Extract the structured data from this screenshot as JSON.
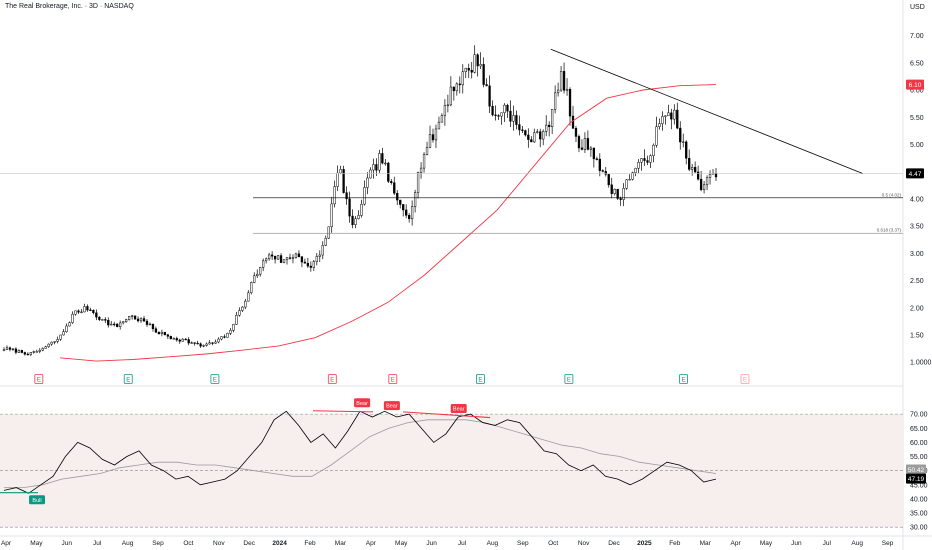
{
  "header": {
    "title": "The Real Brokerage, Inc. · 3D · NASDAQ",
    "currency": "USD"
  },
  "colors": {
    "up": "#ffffff",
    "down": "#000000",
    "candle_outline": "#000000",
    "ma_line": "#f23645",
    "trendline": "#000000",
    "rsi_line": "#000000",
    "rsi_ma": "#9b9b9b",
    "rsi_band": "#f7eeee",
    "bear_label": "#f23645",
    "bull_label": "#089981",
    "last_price_bg": "#000000",
    "ma_price_bg": "#f23645",
    "earnings_up": "#089981",
    "earnings_down": "#f23645"
  },
  "chart_data": [
    {
      "type": "candlestick",
      "name": "price",
      "x_labels": [
        "Apr",
        "May",
        "Jun",
        "Jul",
        "Aug",
        "Sep",
        "Oct",
        "Nov",
        "Dec",
        "2024",
        "Feb",
        "Mar",
        "Apr",
        "May",
        "Jun",
        "Jul",
        "Aug",
        "Sep",
        "Oct",
        "Nov",
        "Dec",
        "2025",
        "Feb",
        "Mar",
        "Apr",
        "May",
        "Jun",
        "Jul",
        "Aug",
        "Sep"
      ],
      "y_ticks": [
        "7.00",
        "6.50",
        "6.00",
        "5.50",
        "5.00",
        "4.50",
        "4.00",
        "3.50",
        "3.00",
        "2.50",
        "2.00",
        "1.50",
        "1.0000"
      ],
      "ylim": [
        0.82,
        7.25
      ],
      "close_path": [
        1.25,
        1.2,
        1.15,
        1.28,
        1.45,
        1.9,
        2.0,
        1.78,
        1.65,
        1.85,
        1.75,
        1.55,
        1.45,
        1.4,
        1.3,
        1.35,
        1.5,
        2.0,
        2.6,
        3.0,
        2.85,
        3.0,
        2.7,
        3.2,
        4.6,
        3.4,
        4.3,
        4.8,
        4.0,
        3.7,
        4.8,
        5.3,
        6.0,
        6.3,
        6.6,
        5.5,
        5.7,
        5.2,
        5.1,
        5.4,
        6.3,
        5.0,
        5.0,
        4.4,
        4.0,
        4.5,
        4.7,
        5.4,
        5.6,
        4.6,
        4.25,
        4.45
      ],
      "last_price": 4.47,
      "ma_label": "6.10",
      "ma_path": [
        1.08,
        1.02,
        1.05,
        1.1,
        1.15,
        1.22,
        1.3,
        1.45,
        1.75,
        2.1,
        2.6,
        3.2,
        3.8,
        4.6,
        5.4,
        5.85,
        6.0,
        6.08,
        6.1
      ],
      "fib_levels": [
        {
          "label": "0.5 (4.02)",
          "value": 4.02
        },
        {
          "label": "0.618 (3.37)",
          "value": 3.37
        }
      ],
      "trendline": {
        "from": [
          0.61,
          6.75
        ],
        "to": [
          0.955,
          4.47
        ]
      },
      "earnings": [
        {
          "pos": 0.043,
          "label": "E",
          "kind": "down"
        },
        {
          "pos": 0.142,
          "label": "E",
          "kind": "up"
        },
        {
          "pos": 0.238,
          "label": "E",
          "kind": "up"
        },
        {
          "pos": 0.368,
          "label": "E",
          "kind": "down"
        },
        {
          "pos": 0.435,
          "label": "E",
          "kind": "down"
        },
        {
          "pos": 0.532,
          "label": "E",
          "kind": "up"
        },
        {
          "pos": 0.63,
          "label": "E",
          "kind": "up"
        },
        {
          "pos": 0.757,
          "label": "E",
          "kind": "up"
        },
        {
          "pos": 0.825,
          "label": "E",
          "kind": "pending"
        }
      ]
    },
    {
      "type": "line",
      "name": "rsi",
      "y_ticks": [
        "70.00",
        "65.00",
        "60.00",
        "55.00",
        "50.00",
        "45.00",
        "40.00",
        "35.00",
        "30.00"
      ],
      "ylim": [
        29,
        75
      ],
      "bands": [
        30,
        70
      ],
      "midline": 50,
      "rsi_value": "47.19",
      "rsi_ma_value": "50.42",
      "rsi_path": [
        43,
        44,
        42,
        45,
        48,
        55,
        60,
        58,
        54,
        52,
        55,
        57,
        52,
        50,
        47,
        48,
        45,
        46,
        47,
        50,
        55,
        60,
        68,
        71,
        66,
        60,
        63,
        58,
        64,
        71,
        69,
        71,
        69,
        70,
        65,
        60,
        63,
        69,
        70,
        67,
        66,
        68,
        67,
        62,
        57,
        56,
        52,
        50,
        52,
        48,
        47,
        45,
        47,
        50,
        53,
        52,
        50,
        46,
        47
      ],
      "rsi_ma_path": [
        44,
        44,
        45,
        47,
        48,
        49,
        51,
        52,
        53,
        53,
        52,
        52,
        51,
        50,
        49,
        48,
        48,
        52,
        57,
        62,
        65,
        67,
        68,
        68,
        68,
        67,
        65,
        63,
        61,
        59,
        58,
        56,
        55,
        53,
        52,
        51,
        50,
        49
      ],
      "divergence_labels": [
        {
          "text": "Bear",
          "pos": 0.401,
          "value": 71
        },
        {
          "text": "Bear",
          "pos": 0.434,
          "value": 70
        },
        {
          "text": "Bear",
          "pos": 0.508,
          "value": 69
        },
        {
          "text": "Bull",
          "pos": 0.041,
          "value": 42
        }
      ]
    }
  ]
}
